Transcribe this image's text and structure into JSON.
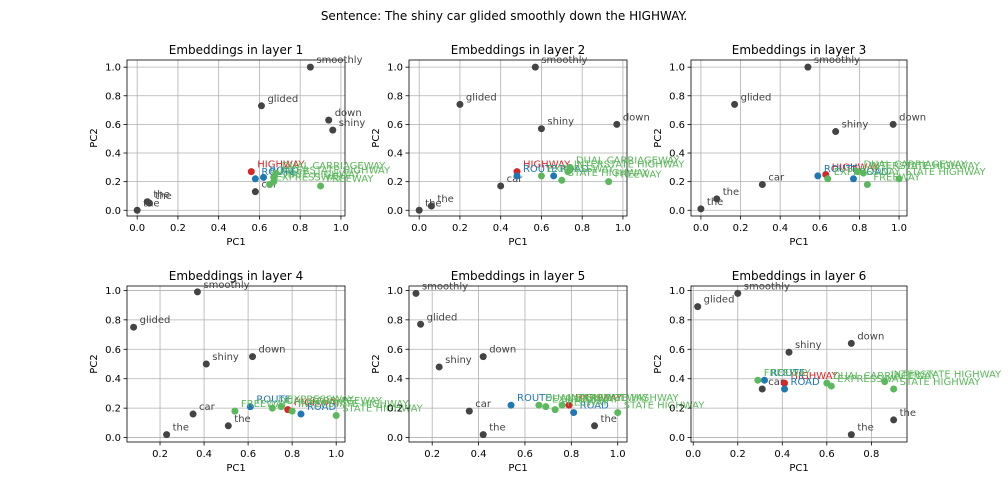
{
  "figure": {
    "title": "Sentence: The shiny car glided smoothly down the HIGHWAY."
  },
  "colors": {
    "sentence": "#444444",
    "target": "#d62728",
    "blue": "#1f77b4",
    "green": "#5cb85c"
  },
  "chart_data": [
    {
      "type": "scatter",
      "title": "Embeddings in layer 1",
      "xlabel": "PC1",
      "ylabel": "PC2",
      "xlim": [
        -0.05,
        1.02
      ],
      "ylim": [
        -0.04,
        1.05
      ],
      "xticks": [
        "0.0",
        "0.2",
        "0.4",
        "0.6",
        "0.8",
        "1.0"
      ],
      "yticks": [
        "0.0",
        "0.2",
        "0.4",
        "0.6",
        "0.8",
        "1.0"
      ],
      "xtick_values": [
        0,
        0.2,
        0.4,
        0.6,
        0.8,
        1.0
      ],
      "ytick_values": [
        0,
        0.2,
        0.4,
        0.6,
        0.8,
        1.0
      ],
      "grid": true,
      "points": [
        {
          "label": "the",
          "x": 0.0,
          "y": 0.0,
          "group": "sentence"
        },
        {
          "label": "the",
          "x": 0.06,
          "y": 0.05,
          "group": "sentence"
        },
        {
          "label": "the",
          "x": 0.05,
          "y": 0.06,
          "group": "sentence"
        },
        {
          "label": "glided",
          "x": 0.61,
          "y": 0.73,
          "group": "sentence"
        },
        {
          "label": "smoothly",
          "x": 0.85,
          "y": 1.0,
          "group": "sentence"
        },
        {
          "label": "down",
          "x": 0.94,
          "y": 0.63,
          "group": "sentence"
        },
        {
          "label": "shiny",
          "x": 0.96,
          "y": 0.56,
          "group": "sentence"
        },
        {
          "label": "car",
          "x": 0.58,
          "y": 0.13,
          "group": "sentence"
        },
        {
          "label": "HIGHWAY",
          "x": 0.56,
          "y": 0.27,
          "group": "target"
        },
        {
          "label": "ROAD",
          "x": 0.62,
          "y": 0.23,
          "group": "blue"
        },
        {
          "label": "ROUTE",
          "x": 0.58,
          "y": 0.22,
          "group": "blue"
        },
        {
          "label": "DUAL CARRIAGEWAY",
          "x": 0.68,
          "y": 0.26,
          "group": "green"
        },
        {
          "label": "INTERSTATE HIGHWAY",
          "x": 0.67,
          "y": 0.23,
          "group": "green"
        },
        {
          "label": "STATE HIGHWAY",
          "x": 0.67,
          "y": 0.2,
          "group": "green"
        },
        {
          "label": "EXPRESSWAY",
          "x": 0.65,
          "y": 0.18,
          "group": "green"
        },
        {
          "label": "FREEWAY",
          "x": 0.9,
          "y": 0.17,
          "group": "green"
        }
      ]
    },
    {
      "type": "scatter",
      "title": "Embeddings in layer 2",
      "xlabel": "PC1",
      "ylabel": "PC2",
      "xlim": [
        -0.05,
        1.02
      ],
      "ylim": [
        -0.04,
        1.05
      ],
      "xticks": [
        "0.0",
        "0.2",
        "0.4",
        "0.6",
        "0.8",
        "1.0"
      ],
      "yticks": [
        "0.0",
        "0.2",
        "0.4",
        "0.6",
        "0.8",
        "1.0"
      ],
      "xtick_values": [
        0,
        0.2,
        0.4,
        0.6,
        0.8,
        1.0
      ],
      "ytick_values": [
        0,
        0.2,
        0.4,
        0.6,
        0.8,
        1.0
      ],
      "grid": true,
      "points": [
        {
          "label": "the",
          "x": 0.0,
          "y": 0.0,
          "group": "sentence"
        },
        {
          "label": "the",
          "x": 0.06,
          "y": 0.03,
          "group": "sentence"
        },
        {
          "label": "glided",
          "x": 0.2,
          "y": 0.74,
          "group": "sentence"
        },
        {
          "label": "smoothly",
          "x": 0.57,
          "y": 1.0,
          "group": "sentence"
        },
        {
          "label": "shiny",
          "x": 0.6,
          "y": 0.57,
          "group": "sentence"
        },
        {
          "label": "down",
          "x": 0.97,
          "y": 0.6,
          "group": "sentence"
        },
        {
          "label": "car",
          "x": 0.4,
          "y": 0.17,
          "group": "sentence"
        },
        {
          "label": "HIGHWAY",
          "x": 0.48,
          "y": 0.27,
          "group": "target"
        },
        {
          "label": "ROUTE",
          "x": 0.48,
          "y": 0.24,
          "group": "blue"
        },
        {
          "label": "ROAD",
          "x": 0.66,
          "y": 0.24,
          "group": "blue"
        },
        {
          "label": "DUAL CARRIAGEWAY",
          "x": 0.74,
          "y": 0.3,
          "group": "green"
        },
        {
          "label": "INTERSTATE HIGHWAY",
          "x": 0.73,
          "y": 0.27,
          "group": "green"
        },
        {
          "label": "STATE HIGHWAY",
          "x": 0.7,
          "y": 0.21,
          "group": "green"
        },
        {
          "label": "EXPRESSWAY",
          "x": 0.6,
          "y": 0.24,
          "group": "green"
        },
        {
          "label": "FREEWAY",
          "x": 0.93,
          "y": 0.2,
          "group": "green"
        }
      ]
    },
    {
      "type": "scatter",
      "title": "Embeddings in layer 3",
      "xlabel": "PC1",
      "ylabel": "PC2",
      "xlim": [
        -0.05,
        1.04
      ],
      "ylim": [
        -0.04,
        1.05
      ],
      "xticks": [
        "0.0",
        "0.2",
        "0.4",
        "0.6",
        "0.8",
        "1.0"
      ],
      "yticks": [
        "0.0",
        "0.2",
        "0.4",
        "0.6",
        "0.8",
        "1.0"
      ],
      "xtick_values": [
        0,
        0.2,
        0.4,
        0.6,
        0.8,
        1.0
      ],
      "ytick_values": [
        0,
        0.2,
        0.4,
        0.6,
        0.8,
        1.0
      ],
      "grid": true,
      "points": [
        {
          "label": "the",
          "x": 0.0,
          "y": 0.01,
          "group": "sentence"
        },
        {
          "label": "the",
          "x": 0.08,
          "y": 0.08,
          "group": "sentence"
        },
        {
          "label": "glided",
          "x": 0.17,
          "y": 0.74,
          "group": "sentence"
        },
        {
          "label": "smoothly",
          "x": 0.54,
          "y": 1.0,
          "group": "sentence"
        },
        {
          "label": "shiny",
          "x": 0.68,
          "y": 0.55,
          "group": "sentence"
        },
        {
          "label": "down",
          "x": 0.97,
          "y": 0.6,
          "group": "sentence"
        },
        {
          "label": "car",
          "x": 0.31,
          "y": 0.18,
          "group": "sentence"
        },
        {
          "label": "HIGHWAY",
          "x": 0.63,
          "y": 0.25,
          "group": "target"
        },
        {
          "label": "ROUTE",
          "x": 0.59,
          "y": 0.24,
          "group": "blue"
        },
        {
          "label": "ROAD",
          "x": 0.77,
          "y": 0.22,
          "group": "blue"
        },
        {
          "label": "DUAL CARRIAGEWAY",
          "x": 0.79,
          "y": 0.27,
          "group": "green"
        },
        {
          "label": "INTERSTATE HIGHWAY",
          "x": 0.82,
          "y": 0.26,
          "group": "green"
        },
        {
          "label": "STATE HIGHWAY",
          "x": 1.0,
          "y": 0.22,
          "group": "green"
        },
        {
          "label": "EXPRESSWAY",
          "x": 0.64,
          "y": 0.22,
          "group": "green"
        },
        {
          "label": "FREEWAY",
          "x": 0.84,
          "y": 0.18,
          "group": "green"
        }
      ]
    },
    {
      "type": "scatter",
      "title": "Embeddings in layer 4",
      "xlabel": "PC1",
      "ylabel": "PC2",
      "xlim": [
        0.05,
        1.04
      ],
      "ylim": [
        -0.03,
        1.03
      ],
      "xticks": [
        "0.2",
        "0.4",
        "0.6",
        "0.8",
        "1.0"
      ],
      "yticks": [
        "0.0",
        "0.2",
        "0.4",
        "0.6",
        "0.8",
        "1.0"
      ],
      "xtick_values": [
        0.2,
        0.4,
        0.6,
        0.8,
        1.0
      ],
      "ytick_values": [
        0,
        0.2,
        0.4,
        0.6,
        0.8,
        1.0
      ],
      "grid": true,
      "points": [
        {
          "label": "glided",
          "x": 0.08,
          "y": 0.75,
          "group": "sentence"
        },
        {
          "label": "smoothly",
          "x": 0.37,
          "y": 0.99,
          "group": "sentence"
        },
        {
          "label": "shiny",
          "x": 0.41,
          "y": 0.5,
          "group": "sentence"
        },
        {
          "label": "down",
          "x": 0.62,
          "y": 0.55,
          "group": "sentence"
        },
        {
          "label": "car",
          "x": 0.35,
          "y": 0.16,
          "group": "sentence"
        },
        {
          "label": "the",
          "x": 0.23,
          "y": 0.02,
          "group": "sentence"
        },
        {
          "label": "the",
          "x": 0.51,
          "y": 0.08,
          "group": "sentence"
        },
        {
          "label": "HIGHWAY",
          "x": 0.78,
          "y": 0.19,
          "group": "target"
        },
        {
          "label": "ROUTE",
          "x": 0.61,
          "y": 0.21,
          "group": "blue"
        },
        {
          "label": "ROAD",
          "x": 0.84,
          "y": 0.16,
          "group": "blue"
        },
        {
          "label": "DUAL CARRIAGEWAY",
          "x": 0.71,
          "y": 0.2,
          "group": "green"
        },
        {
          "label": "INTERSTATE HIGHWAY",
          "x": 0.8,
          "y": 0.18,
          "group": "green"
        },
        {
          "label": "STATE HIGHWAY",
          "x": 1.0,
          "y": 0.15,
          "group": "green"
        },
        {
          "label": "EXPRESSWAY",
          "x": 0.75,
          "y": 0.21,
          "group": "green"
        },
        {
          "label": "FREEWAY",
          "x": 0.54,
          "y": 0.18,
          "group": "green"
        }
      ]
    },
    {
      "type": "scatter",
      "title": "Embeddings in layer 5",
      "xlabel": "PC1",
      "ylabel": "PC2",
      "xlim": [
        0.1,
        1.04
      ],
      "ylim": [
        -0.03,
        1.03
      ],
      "xticks": [
        "0.2",
        "0.4",
        "0.6",
        "0.8",
        "1.0"
      ],
      "yticks": [
        "0.0",
        "0.2",
        "0.4",
        "0.6",
        "0.8",
        "1.0"
      ],
      "xtick_values": [
        0.2,
        0.4,
        0.6,
        0.8,
        1.0
      ],
      "ytick_values": [
        0,
        0.2,
        0.4,
        0.6,
        0.8,
        1.0
      ],
      "grid": true,
      "points": [
        {
          "label": "smoothly",
          "x": 0.13,
          "y": 0.98,
          "group": "sentence"
        },
        {
          "label": "glided",
          "x": 0.15,
          "y": 0.77,
          "group": "sentence"
        },
        {
          "label": "shiny",
          "x": 0.23,
          "y": 0.48,
          "group": "sentence"
        },
        {
          "label": "down",
          "x": 0.42,
          "y": 0.55,
          "group": "sentence"
        },
        {
          "label": "car",
          "x": 0.36,
          "y": 0.18,
          "group": "sentence"
        },
        {
          "label": "the",
          "x": 0.42,
          "y": 0.02,
          "group": "sentence"
        },
        {
          "label": "the",
          "x": 0.9,
          "y": 0.08,
          "group": "sentence"
        },
        {
          "label": "HIGHWAY",
          "x": 0.79,
          "y": 0.22,
          "group": "target"
        },
        {
          "label": "ROUTE",
          "x": 0.54,
          "y": 0.22,
          "group": "blue"
        },
        {
          "label": "ROAD",
          "x": 0.81,
          "y": 0.17,
          "group": "blue"
        },
        {
          "label": "DUAL CARRIAGEWAY",
          "x": 0.66,
          "y": 0.22,
          "group": "green"
        },
        {
          "label": "INTERSTATE HIGHWAY",
          "x": 0.76,
          "y": 0.22,
          "group": "green"
        },
        {
          "label": "STATE HIGHWAY",
          "x": 1.0,
          "y": 0.17,
          "group": "green"
        },
        {
          "label": "EXPRESSWAY",
          "x": 0.69,
          "y": 0.21,
          "group": "green"
        },
        {
          "label": "FREEWAY",
          "x": 0.73,
          "y": 0.19,
          "group": "green"
        }
      ]
    },
    {
      "type": "scatter",
      "title": "Embeddings in layer 6",
      "xlabel": "PC1",
      "ylabel": "PC2",
      "xlim": [
        -0.01,
        0.96
      ],
      "ylim": [
        -0.03,
        1.03
      ],
      "xticks": [
        "0.0",
        "0.2",
        "0.4",
        "0.6",
        "0.8"
      ],
      "yticks": [
        "0.0",
        "0.2",
        "0.4",
        "0.6",
        "0.8",
        "1.0"
      ],
      "xtick_values": [
        0,
        0.2,
        0.4,
        0.6,
        0.8
      ],
      "ytick_values": [
        0,
        0.2,
        0.4,
        0.6,
        0.8,
        1.0
      ],
      "grid": true,
      "points": [
        {
          "label": "glided",
          "x": 0.02,
          "y": 0.89,
          "group": "sentence"
        },
        {
          "label": "smoothly",
          "x": 0.2,
          "y": 0.98,
          "group": "sentence"
        },
        {
          "label": "shiny",
          "x": 0.43,
          "y": 0.58,
          "group": "sentence"
        },
        {
          "label": "down",
          "x": 0.71,
          "y": 0.64,
          "group": "sentence"
        },
        {
          "label": "car",
          "x": 0.31,
          "y": 0.33,
          "group": "sentence"
        },
        {
          "label": "the",
          "x": 0.9,
          "y": 0.12,
          "group": "sentence"
        },
        {
          "label": "the",
          "x": 0.71,
          "y": 0.02,
          "group": "sentence"
        },
        {
          "label": "HIGHWAY",
          "x": 0.41,
          "y": 0.37,
          "group": "target"
        },
        {
          "label": "ROUTE",
          "x": 0.32,
          "y": 0.39,
          "group": "blue"
        },
        {
          "label": "ROAD",
          "x": 0.41,
          "y": 0.33,
          "group": "blue"
        },
        {
          "label": "DUAL CARRIAGEWAY",
          "x": 0.6,
          "y": 0.37,
          "group": "green"
        },
        {
          "label": "INTERSTATE HIGHWAY",
          "x": 0.86,
          "y": 0.38,
          "group": "green"
        },
        {
          "label": "STATE HIGHWAY",
          "x": 0.9,
          "y": 0.33,
          "group": "green"
        },
        {
          "label": "EXPRESSWAY",
          "x": 0.62,
          "y": 0.35,
          "group": "green"
        },
        {
          "label": "FREEWAY",
          "x": 0.29,
          "y": 0.39,
          "group": "green"
        }
      ]
    }
  ]
}
